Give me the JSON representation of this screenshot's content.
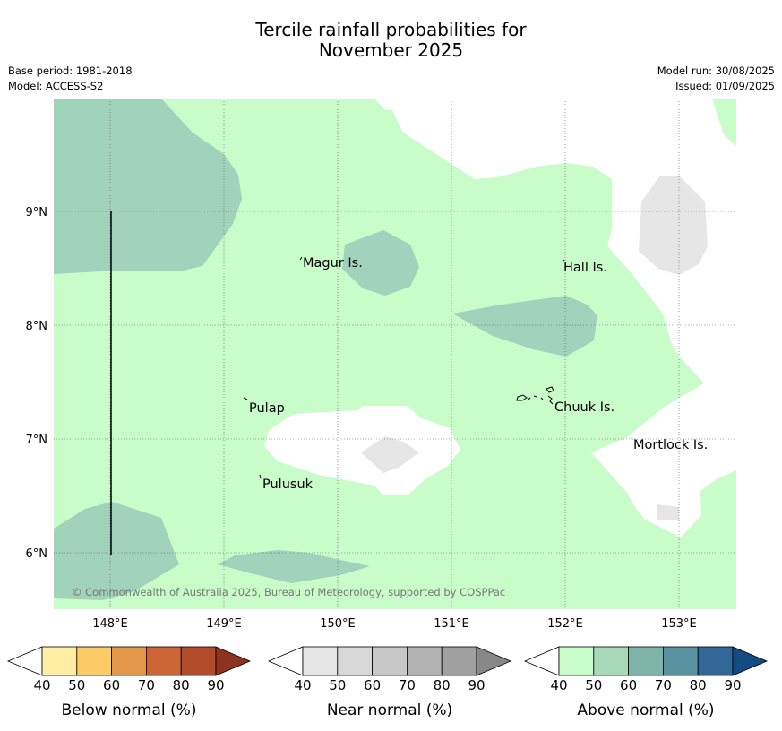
{
  "header": {
    "title_line1": "Tercile rainfall probabilities for",
    "title_line2": "November 2025",
    "base_period": "Base period: 1981-2018",
    "model": "Model: ACCESS-S2",
    "model_run": "Model run: 30/08/2025",
    "issued": "Issued: 01/09/2025"
  },
  "map": {
    "lon_ticks": [
      "148°E",
      "149°E",
      "150°E",
      "151°E",
      "152°E",
      "153°E"
    ],
    "lat_ticks": [
      "9°N",
      "8°N",
      "7°N",
      "6°N"
    ],
    "places": [
      {
        "name": "Magur Is."
      },
      {
        "name": "Hall Is."
      },
      {
        "name": "Pulap"
      },
      {
        "name": "Chuuk Is."
      },
      {
        "name": "Mortlock Is."
      },
      {
        "name": "Pulusuk"
      }
    ],
    "copyright": "© Commonwealth of Australia 2025, Bureau of Meteorology, supported by COSPPac"
  },
  "legends": [
    {
      "label": "Below normal (%)",
      "ticks": [
        "40",
        "50",
        "60",
        "70",
        "80",
        "90"
      ],
      "colors": [
        "#ffeea3",
        "#fdcc66",
        "#e3974a",
        "#cd6536",
        "#b24b2a",
        "#8e3321"
      ]
    },
    {
      "label": "Near normal (%)",
      "ticks": [
        "40",
        "50",
        "60",
        "70",
        "80",
        "90"
      ],
      "colors": [
        "#e6e6e6",
        "#d8d8d8",
        "#c8c8c8",
        "#b3b3b3",
        "#a0a0a0",
        "#888888"
      ]
    },
    {
      "label": "Above normal (%)",
      "ticks": [
        "40",
        "50",
        "60",
        "70",
        "80",
        "90"
      ],
      "colors": [
        "#c8fcc8",
        "#a7d8b8",
        "#7fb5a8",
        "#5b92a2",
        "#326797",
        "#134b82"
      ]
    }
  ]
}
